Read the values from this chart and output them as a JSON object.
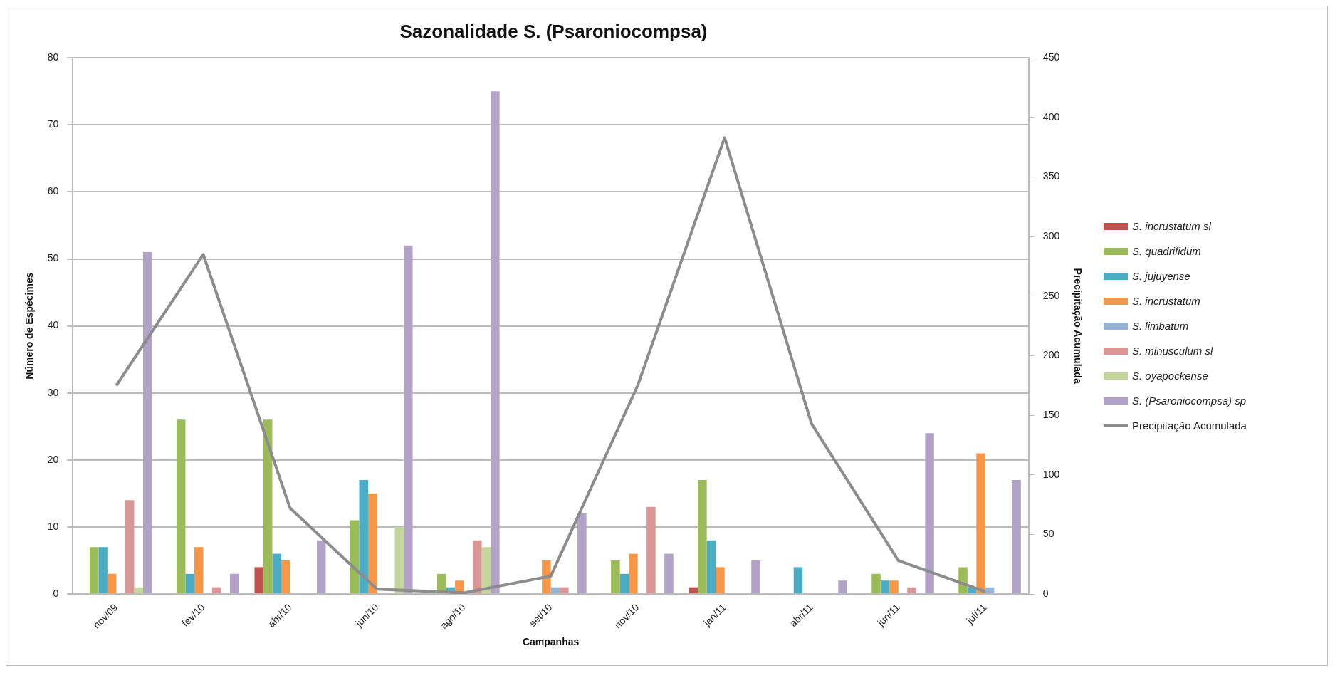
{
  "chart_data": {
    "type": "bar",
    "title": "Sazonalidade S. (Psaroniocompsa)",
    "xlabel": "Campanhas",
    "ylabel": "Número de Espécimes",
    "y2label": "Precipitação Acumulada",
    "categories": [
      "nov/09",
      "fev/10",
      "abr/10",
      "jun/10",
      "ago/10",
      "set/10",
      "nov/10",
      "jan/11",
      "abr/11",
      "jun/11",
      "jul/11"
    ],
    "series": [
      {
        "name": "S. incrustatum sl",
        "color": "#c0504d",
        "values": [
          0,
          0,
          4,
          0,
          0,
          0,
          0,
          1,
          0,
          0,
          0
        ]
      },
      {
        "name": "S. quadrifidum",
        "color": "#9bbb59",
        "values": [
          7,
          26,
          26,
          11,
          3,
          0,
          5,
          17,
          0,
          3,
          4
        ]
      },
      {
        "name": "S. jujuyense",
        "color": "#4bacc6",
        "values": [
          7,
          3,
          6,
          17,
          1,
          0,
          3,
          8,
          4,
          2,
          1
        ]
      },
      {
        "name": "S. incrustatum",
        "color": "#f79646",
        "values": [
          3,
          7,
          5,
          15,
          2,
          5,
          6,
          4,
          0,
          2,
          21
        ]
      },
      {
        "name": "S. limbatum",
        "color": "#95b3d7",
        "values": [
          0,
          0,
          0,
          0,
          0,
          1,
          0,
          0,
          0,
          0,
          1
        ]
      },
      {
        "name": "S. minusculum sl",
        "color": "#d99694",
        "values": [
          14,
          1,
          0,
          0,
          8,
          1,
          13,
          0,
          0,
          1,
          0
        ]
      },
      {
        "name": "S. oyapockense",
        "color": "#c3d69b",
        "values": [
          1,
          0,
          0,
          10,
          7,
          0,
          0,
          0,
          0,
          0,
          0
        ]
      },
      {
        "name": "S. (Psaroniocompsa) sp",
        "color": "#b2a2c7",
        "values": [
          51,
          3,
          8,
          52,
          75,
          12,
          6,
          5,
          2,
          24,
          17
        ]
      },
      {
        "name": "Precipitação Acumulada",
        "type": "line",
        "axis": "y2",
        "color": "#8c8c8c",
        "values": [
          175,
          285,
          72,
          4,
          1,
          15,
          175,
          383,
          143,
          28,
          2
        ]
      }
    ],
    "ylim": [
      0,
      80
    ],
    "yticks": [
      0,
      10,
      20,
      30,
      40,
      50,
      60,
      70,
      80
    ],
    "y2lim": [
      0,
      450
    ],
    "y2ticks": [
      0,
      50,
      100,
      150,
      200,
      250,
      300,
      350,
      400,
      450
    ],
    "grid": "y",
    "legend": "right",
    "marker": "none",
    "line_style": "solid"
  }
}
